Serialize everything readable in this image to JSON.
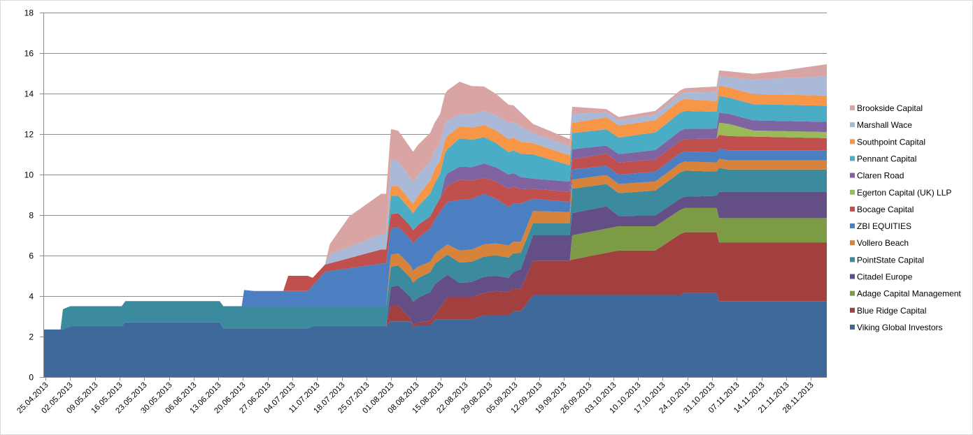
{
  "chart_data": {
    "type": "area",
    "stacked": true,
    "title": "",
    "xlabel": "",
    "ylabel": "",
    "ylim": [
      0,
      18
    ],
    "yticks": [
      0,
      2,
      4,
      6,
      8,
      10,
      12,
      14,
      16,
      18
    ],
    "grid": true,
    "legend_position": "right",
    "x_tick_labels": [
      "25.04.2013",
      "02.05.2013",
      "09.05.2013",
      "16.05.2013",
      "23.05.2013",
      "30.05.2013",
      "06.06.2013",
      "13.06.2013",
      "20.06.2013",
      "27.06.2013",
      "04.07.2013",
      "11.07.2013",
      "18.07.2013",
      "25.07.2013",
      "01.08.2013",
      "08.08.2013",
      "15.08.2013",
      "22.08.2013",
      "29.08.2013",
      "05.09.2013",
      "12.09.2013",
      "19.09.2013",
      "26.09.2013",
      "03.10.2013",
      "10.10.2013",
      "17.10.2013",
      "24.10.2013",
      "31.10.2013",
      "07.11.2013",
      "14.11.2013",
      "21.11.2013",
      "28.11.2013"
    ],
    "x_range_weeks": [
      0,
      32
    ],
    "series": [
      {
        "name": "Viking Global Investors",
        "color": "#3F689B",
        "points": [
          [
            0,
            2.35
          ],
          [
            0.8,
            2.35
          ],
          [
            1.1,
            2.5
          ],
          [
            3.2,
            2.5
          ],
          [
            3.35,
            2.7
          ],
          [
            7.2,
            2.7
          ],
          [
            7.35,
            2.4
          ],
          [
            10.8,
            2.4
          ],
          [
            11,
            2.5
          ],
          [
            14,
            2.5
          ],
          [
            14.15,
            2.75
          ],
          [
            15,
            2.75
          ],
          [
            15.1,
            2.45
          ],
          [
            15.3,
            2.55
          ],
          [
            15.8,
            2.55
          ],
          [
            16,
            2.85
          ],
          [
            17.5,
            2.85
          ],
          [
            18,
            3.05
          ],
          [
            19,
            3.05
          ],
          [
            19.2,
            3.25
          ],
          [
            19.5,
            3.25
          ],
          [
            20,
            4.05
          ],
          [
            26,
            4.05
          ],
          [
            26.2,
            4.15
          ],
          [
            27.5,
            4.15
          ],
          [
            27.6,
            3.75
          ],
          [
            32,
            3.75
          ]
        ]
      },
      {
        "name": "Blue Ridge Capital",
        "color": "#A1403E",
        "points": [
          [
            0,
            0
          ],
          [
            14,
            0
          ],
          [
            14.2,
            0.8
          ],
          [
            14.5,
            0.8
          ],
          [
            15,
            0.1
          ],
          [
            16,
            0.25
          ],
          [
            16.5,
            1.1
          ],
          [
            18,
            1.1
          ],
          [
            18.5,
            1.2
          ],
          [
            19.5,
            1.1
          ],
          [
            20,
            1.7
          ],
          [
            21.5,
            1.7
          ],
          [
            21.6,
            1.75
          ],
          [
            23.5,
            2.2
          ],
          [
            25,
            2.2
          ],
          [
            26,
            3.0
          ],
          [
            27.5,
            3.0
          ],
          [
            27.6,
            2.9
          ],
          [
            32,
            2.9
          ]
        ]
      },
      {
        "name": "Adage Capital Management",
        "color": "#7D9A44",
        "points": [
          [
            0,
            0
          ],
          [
            21.5,
            0
          ],
          [
            21.6,
            1.2
          ],
          [
            23.5,
            1.2
          ],
          [
            24,
            1.2
          ],
          [
            26,
            1.2
          ],
          [
            26.2,
            1.2
          ],
          [
            27.5,
            1.2
          ],
          [
            27.6,
            1.2
          ],
          [
            32,
            1.2
          ]
        ]
      },
      {
        "name": "Citadel Europe",
        "color": "#634F86",
        "points": [
          [
            0,
            0
          ],
          [
            14,
            0
          ],
          [
            14.2,
            0.9
          ],
          [
            15,
            1.1
          ],
          [
            16,
            1.5
          ],
          [
            17,
            0.7
          ],
          [
            18,
            0.8
          ],
          [
            19,
            0.7
          ],
          [
            20,
            1.25
          ],
          [
            21.5,
            1.25
          ],
          [
            21.6,
            1.1
          ],
          [
            23,
            1.1
          ],
          [
            23.5,
            0.5
          ],
          [
            26,
            0.55
          ],
          [
            27.5,
            0.6
          ],
          [
            27.6,
            1.3
          ],
          [
            32,
            1.3
          ]
        ]
      },
      {
        "name": "PointState Capital",
        "color": "#3B8A9E",
        "points": [
          [
            0,
            0
          ],
          [
            0.7,
            0
          ],
          [
            0.8,
            1.0
          ],
          [
            3.2,
            1.0
          ],
          [
            3.35,
            1.05
          ],
          [
            7.2,
            1.05
          ],
          [
            7.35,
            1.1
          ],
          [
            10.8,
            1.1
          ],
          [
            11,
            1.0
          ],
          [
            14,
            1.0
          ],
          [
            14.2,
            1.0
          ],
          [
            15,
            0.95
          ],
          [
            16,
            1.0
          ],
          [
            17,
            1.0
          ],
          [
            18,
            1.0
          ],
          [
            19,
            1.0
          ],
          [
            19.5,
            0.8
          ],
          [
            20,
            0.6
          ],
          [
            21.5,
            0.6
          ],
          [
            21.6,
            1.2
          ],
          [
            23,
            1.1
          ],
          [
            26,
            1.3
          ],
          [
            27.5,
            1.2
          ],
          [
            28,
            1.1
          ],
          [
            32,
            1.1
          ]
        ]
      },
      {
        "name": "Vollero Beach",
        "color": "#D7833B",
        "points": [
          [
            0,
            0
          ],
          [
            14,
            0
          ],
          [
            14.2,
            0.6
          ],
          [
            15,
            0.6
          ],
          [
            16,
            0.5
          ],
          [
            16.5,
            0.5
          ],
          [
            17,
            0.6
          ],
          [
            18,
            0.6
          ],
          [
            19,
            0.6
          ],
          [
            19.5,
            0.55
          ],
          [
            20,
            0.6
          ],
          [
            21.5,
            0.55
          ],
          [
            21.6,
            0.45
          ],
          [
            23,
            0.45
          ],
          [
            26,
            0.45
          ],
          [
            28,
            0.45
          ],
          [
            32,
            0.45
          ]
        ]
      },
      {
        "name": "ZBI EQUITIES",
        "color": "#4B7FC1",
        "points": [
          [
            0,
            0
          ],
          [
            8.1,
            0
          ],
          [
            8.2,
            0.8
          ],
          [
            8.6,
            0.75
          ],
          [
            10.8,
            0.75
          ],
          [
            11,
            1.0
          ],
          [
            11.5,
            1.7
          ],
          [
            13.8,
            2.1
          ],
          [
            14,
            2.1
          ],
          [
            14.2,
            1.3
          ],
          [
            15,
            1.3
          ],
          [
            16,
            1.7
          ],
          [
            17,
            2.5
          ],
          [
            18,
            2.5
          ],
          [
            19,
            1.9
          ],
          [
            19.5,
            1.9
          ],
          [
            20,
            0.6
          ],
          [
            21.5,
            0.5
          ],
          [
            21.6,
            0.5
          ],
          [
            23,
            0.45
          ],
          [
            26,
            0.5
          ],
          [
            28,
            0.5
          ],
          [
            32,
            0.5
          ]
        ]
      },
      {
        "name": "Bocage Capital",
        "color": "#C0504D",
        "points": [
          [
            0,
            0
          ],
          [
            9.8,
            0
          ],
          [
            10,
            0.75
          ],
          [
            10.8,
            0.75
          ],
          [
            11,
            0.4
          ],
          [
            11.5,
            0.35
          ],
          [
            13.8,
            0.7
          ],
          [
            14,
            0.7
          ],
          [
            14.2,
            0.7
          ],
          [
            16,
            0.6
          ],
          [
            17,
            1.0
          ],
          [
            18,
            0.8
          ],
          [
            19,
            0.9
          ],
          [
            20,
            0.5
          ],
          [
            21.5,
            0.5
          ],
          [
            21.6,
            0.5
          ],
          [
            23,
            0.6
          ],
          [
            26,
            0.6
          ],
          [
            28,
            0.7
          ],
          [
            32,
            0.6
          ]
        ]
      },
      {
        "name": "Egerton Capital (UK) LLP",
        "color": "#9BBB59",
        "points": [
          [
            0,
            0
          ],
          [
            27.5,
            0
          ],
          [
            27.6,
            0.6
          ],
          [
            28,
            0.6
          ],
          [
            29,
            0.3
          ],
          [
            30,
            0.3
          ],
          [
            32,
            0.3
          ]
        ]
      },
      {
        "name": "Claren Road",
        "color": "#8064A2",
        "points": [
          [
            0,
            0
          ],
          [
            16.2,
            0
          ],
          [
            16.4,
            0.6
          ],
          [
            18,
            0.7
          ],
          [
            19,
            0.7
          ],
          [
            20,
            0.5
          ],
          [
            21.5,
            0.5
          ],
          [
            21.6,
            0.5
          ],
          [
            23,
            0.4
          ],
          [
            26,
            0.5
          ],
          [
            28,
            0.5
          ],
          [
            32,
            0.5
          ]
        ]
      },
      {
        "name": "Pennant Capital",
        "color": "#4BACC6",
        "points": [
          [
            0,
            0
          ],
          [
            14,
            0
          ],
          [
            14.2,
            0.9
          ],
          [
            15,
            0.8
          ],
          [
            16,
            1.2
          ],
          [
            16.5,
            1.2
          ],
          [
            17,
            1.4
          ],
          [
            18,
            1.3
          ],
          [
            19,
            1.1
          ],
          [
            20,
            1.2
          ],
          [
            21.5,
            0.8
          ],
          [
            21.6,
            0.8
          ],
          [
            23,
            0.8
          ],
          [
            26,
            0.9
          ],
          [
            28,
            0.8
          ],
          [
            32,
            0.8
          ]
        ]
      },
      {
        "name": "Southpoint Capital",
        "color": "#F79646",
        "points": [
          [
            0,
            0
          ],
          [
            14,
            0
          ],
          [
            14.2,
            0.5
          ],
          [
            15,
            0.45
          ],
          [
            16,
            0.7
          ],
          [
            17,
            0.6
          ],
          [
            18,
            0.6
          ],
          [
            19,
            0.65
          ],
          [
            20,
            0.55
          ],
          [
            21.5,
            0.5
          ],
          [
            21.6,
            0.5
          ],
          [
            23,
            0.6
          ],
          [
            26,
            0.6
          ],
          [
            28,
            0.5
          ],
          [
            32,
            0.5
          ]
        ]
      },
      {
        "name": "Marshall Wace",
        "color": "#A9B9D7",
        "points": [
          [
            0,
            0
          ],
          [
            11.5,
            0
          ],
          [
            11.7,
            0.45
          ],
          [
            13.8,
            0.75
          ],
          [
            14,
            0.75
          ],
          [
            14.2,
            1.3
          ],
          [
            15,
            1.1
          ],
          [
            16,
            0.9
          ],
          [
            17,
            0.6
          ],
          [
            18,
            0.7
          ],
          [
            19,
            0.8
          ],
          [
            19.5,
            0.75
          ],
          [
            20,
            0.5
          ],
          [
            21.5,
            0.45
          ],
          [
            21.6,
            0.45
          ],
          [
            23,
            0.25
          ],
          [
            26,
            0.3
          ],
          [
            28,
            0.5
          ],
          [
            29,
            0.7
          ],
          [
            30,
            0.8
          ],
          [
            32,
            0.95
          ]
        ]
      },
      {
        "name": "Brookside Capital",
        "color": "#D9A5A4",
        "points": [
          [
            0,
            0
          ],
          [
            11.5,
            0
          ],
          [
            11.7,
            0.5
          ],
          [
            12.5,
            1.5
          ],
          [
            13.8,
            2.0
          ],
          [
            14,
            2.0
          ],
          [
            14.2,
            1.5
          ],
          [
            15,
            1.5
          ],
          [
            16,
            1.4
          ],
          [
            17,
            1.6
          ],
          [
            18,
            1.2
          ],
          [
            19,
            0.9
          ],
          [
            19.5,
            0.7
          ],
          [
            20,
            0.45
          ],
          [
            21.5,
            0.35
          ],
          [
            21.6,
            0.35
          ],
          [
            23,
            0.15
          ],
          [
            26,
            0.2
          ],
          [
            28,
            0.3
          ],
          [
            29,
            0.3
          ],
          [
            30,
            0.35
          ],
          [
            32,
            0.6
          ]
        ]
      }
    ]
  }
}
